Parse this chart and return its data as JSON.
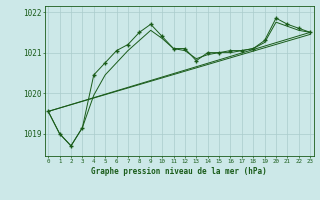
{
  "title": "Graphe pression niveau de la mer (hPa)",
  "bg_color": "#cce8e8",
  "grid_color": "#aacccc",
  "line_color": "#1a5c1a",
  "main_x": [
    0,
    1,
    2,
    3,
    4,
    5,
    6,
    7,
    8,
    9,
    10,
    11,
    12,
    13,
    14,
    15,
    16,
    17,
    18,
    19,
    20,
    21,
    22,
    23
  ],
  "main_y": [
    1019.55,
    1019.0,
    1018.7,
    1019.15,
    1020.45,
    1020.75,
    1021.05,
    1021.2,
    1021.5,
    1021.7,
    1021.4,
    1021.1,
    1021.1,
    1020.8,
    1021.0,
    1021.0,
    1021.05,
    1021.05,
    1021.1,
    1021.3,
    1021.85,
    1021.7,
    1021.6,
    1021.5
  ],
  "smooth_x": [
    0,
    1,
    2,
    3,
    4,
    5,
    6,
    7,
    8,
    9,
    10,
    11,
    12,
    13,
    14,
    15,
    16,
    17,
    18,
    19,
    20,
    21,
    22,
    23
  ],
  "smooth_y": [
    1019.55,
    1019.0,
    1018.7,
    1019.15,
    1019.95,
    1020.45,
    1020.75,
    1021.05,
    1021.3,
    1021.55,
    1021.35,
    1021.1,
    1021.05,
    1020.85,
    1020.95,
    1021.0,
    1021.0,
    1021.05,
    1021.1,
    1021.25,
    1021.75,
    1021.65,
    1021.55,
    1021.5
  ],
  "trend1_x": [
    0,
    23
  ],
  "trend1_y": [
    1019.55,
    1021.5
  ],
  "trend2_x": [
    0,
    23
  ],
  "trend2_y": [
    1019.55,
    1021.45
  ],
  "ylim": [
    1018.45,
    1022.15
  ],
  "yticks": [
    1019,
    1020,
    1021,
    1022
  ],
  "xlim": [
    -0.3,
    23.3
  ],
  "xticks": [
    0,
    1,
    2,
    3,
    4,
    5,
    6,
    7,
    8,
    9,
    10,
    11,
    12,
    13,
    14,
    15,
    16,
    17,
    18,
    19,
    20,
    21,
    22,
    23
  ]
}
